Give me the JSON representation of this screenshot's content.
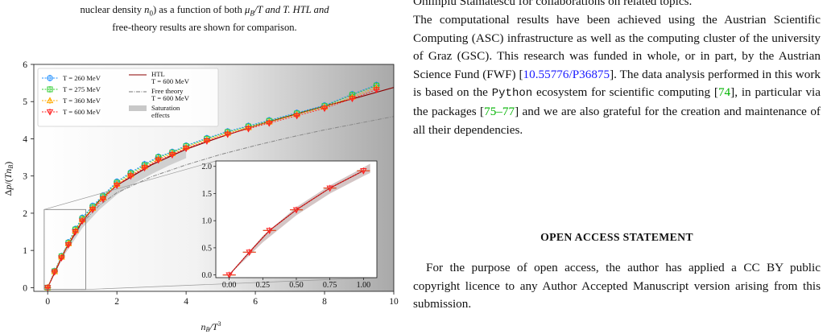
{
  "caption": {
    "line1_pre": "nuclear density ",
    "line1_sym": "n",
    "line1_sub": "0",
    "line1_mid": ") as a function of both ",
    "line1_mu": "μ",
    "line1_sub2": "B",
    "line1_post": "/T and T. HTL and",
    "line2": "free-theory results are shown for comparison."
  },
  "right_column": {
    "clipped_line": "Ohlinpiu Stamatescu for collaborations on related topics.",
    "para1_a": "The computational results have been achieved using the Austrian Scientific Computing (ASC) infrastructure as well as the computing cluster of the university of Graz (GSC). This research was funded in whole, or in part, by the Austrian Science Fund (FWF) [",
    "doi": "10.55776/P36875",
    "para1_b": "]. The data analysis performed in this work is based on the ",
    "python": "Python",
    "para1_c": " ecosystem for scientific computing [",
    "cite1": "74",
    "para1_d": "], in particular via the packages [",
    "cite2": "75–77",
    "para1_e": "] and we are also grateful for the creation and maintenance of all their dependencies.",
    "section_title": "OPEN ACCESS STATEMENT",
    "para2": "For the purpose of open access, the author has applied a CC BY public copyright licence to any Author Accepted Manuscript version arising from this submission."
  },
  "chart_data": {
    "type": "scatter",
    "xlabel": "n_B/T^3",
    "ylabel": "Δp/(T n_B)",
    "xlim": [
      -0.4,
      10
    ],
    "ylim": [
      -0.1,
      6
    ],
    "xticks": [
      0,
      2,
      4,
      6,
      8,
      10
    ],
    "yticks": [
      0,
      1,
      2,
      3,
      4,
      5,
      6
    ],
    "legend": {
      "placement": "top-left",
      "entries": [
        {
          "label": "T = 260 MeV",
          "color": "#1f8fff"
        },
        {
          "label": "T = 275 MeV",
          "color": "#33cc33"
        },
        {
          "label": "T = 360 MeV",
          "color": "#ffaa00"
        },
        {
          "label": "T = 600 MeV",
          "color": "#ff2222"
        }
      ],
      "secondary": [
        {
          "label": "HTL",
          "label2": "T = 600 MeV",
          "color": "#8b0000"
        },
        {
          "label": "Free theory",
          "label2": "T = 600 MeV",
          "color": "#777777"
        },
        {
          "label": "Saturation",
          "label2": "effects",
          "color": "#c8c8c8"
        }
      ]
    },
    "series": [
      {
        "name": "T = 260 MeV",
        "color": "#1f8fff",
        "x": [
          0,
          0.2,
          0.4,
          0.6,
          0.8,
          1.0,
          1.3,
          1.6,
          2.0,
          2.4,
          2.8,
          3.2,
          3.6,
          4.0,
          4.6,
          5.2,
          5.8,
          6.4,
          7.2,
          8.0,
          8.8,
          9.5
        ],
        "y": [
          0,
          0.45,
          0.85,
          1.22,
          1.58,
          1.88,
          2.2,
          2.48,
          2.85,
          3.1,
          3.32,
          3.52,
          3.65,
          3.82,
          4.02,
          4.2,
          4.35,
          4.5,
          4.7,
          4.9,
          5.2,
          5.45
        ]
      },
      {
        "name": "T = 275 MeV",
        "color": "#33cc33",
        "x": [
          0,
          0.2,
          0.4,
          0.6,
          0.8,
          1.0,
          1.3,
          1.6,
          2.0,
          2.4,
          2.8,
          3.2,
          3.6,
          4.0,
          4.6,
          5.2,
          5.8,
          6.4,
          7.2,
          8.0,
          8.8,
          9.5
        ],
        "y": [
          0,
          0.44,
          0.84,
          1.2,
          1.56,
          1.85,
          2.17,
          2.45,
          2.82,
          3.07,
          3.29,
          3.5,
          3.63,
          3.8,
          4.0,
          4.18,
          4.33,
          4.48,
          4.68,
          4.88,
          5.18,
          5.43
        ]
      },
      {
        "name": "T = 360 MeV",
        "color": "#ffaa00",
        "x": [
          0,
          0.2,
          0.4,
          0.6,
          0.8,
          1.0,
          1.3,
          1.6,
          2.0,
          2.4,
          2.8,
          3.2,
          3.6,
          4.0,
          4.6,
          5.2,
          5.8,
          6.4,
          7.2,
          8.0,
          8.8,
          9.5
        ],
        "y": [
          0,
          0.43,
          0.82,
          1.18,
          1.53,
          1.82,
          2.13,
          2.41,
          2.78,
          3.03,
          3.25,
          3.46,
          3.6,
          3.77,
          3.97,
          4.15,
          4.3,
          4.45,
          4.65,
          4.85,
          5.12,
          5.38
        ]
      },
      {
        "name": "T = 600 MeV",
        "color": "#ff2222",
        "x": [
          0,
          0.2,
          0.4,
          0.6,
          0.8,
          1.0,
          1.3,
          1.6,
          2.0,
          2.4,
          2.8,
          3.2,
          3.6,
          4.0,
          4.6,
          5.2,
          5.8,
          6.4,
          7.2,
          8.0,
          8.8,
          9.5
        ],
        "y": [
          0,
          0.42,
          0.8,
          1.15,
          1.5,
          1.79,
          2.1,
          2.38,
          2.75,
          3.0,
          3.22,
          3.43,
          3.57,
          3.74,
          3.94,
          4.12,
          4.27,
          4.42,
          4.62,
          4.82,
          5.08,
          5.32
        ]
      }
    ],
    "htl_curve": {
      "x": [
        0,
        0.5,
        1,
        1.5,
        2,
        3,
        4,
        5,
        6,
        7,
        8,
        9,
        10
      ],
      "y": [
        0,
        1.0,
        1.78,
        2.35,
        2.75,
        3.3,
        3.72,
        4.05,
        4.35,
        4.62,
        4.88,
        5.12,
        5.38
      ]
    },
    "free_curve": {
      "x": [
        0,
        0.5,
        1,
        1.5,
        2,
        3,
        4,
        5,
        6,
        7,
        8,
        9,
        10
      ],
      "y": [
        0,
        1.0,
        1.74,
        2.22,
        2.55,
        2.98,
        3.3,
        3.58,
        3.82,
        4.04,
        4.24,
        4.42,
        4.6
      ]
    },
    "saturation_band": {
      "x": [
        0,
        0.5,
        1,
        1.5,
        2,
        2.5,
        3,
        3.5,
        4
      ],
      "y_low": [
        0,
        0.9,
        1.6,
        2.1,
        2.5,
        2.8,
        3.05,
        3.28,
        3.48
      ],
      "y_high": [
        0,
        1.0,
        1.8,
        2.35,
        2.75,
        3.05,
        3.3,
        3.52,
        3.72
      ]
    },
    "inset": {
      "xlim": [
        -0.1,
        1.1
      ],
      "ylim": [
        -0.05,
        2.1
      ],
      "xticks": [
        0.0,
        0.25,
        0.5,
        0.75,
        1.0
      ],
      "xtick_labels": [
        "0.00",
        "0.25",
        "0.50",
        "0.75",
        "1.00"
      ],
      "yticks": [
        0.0,
        0.5,
        1.0,
        1.5,
        2.0
      ],
      "ytick_labels": [
        "0.0",
        "0.5",
        "1.0",
        "1.5",
        "2.0"
      ],
      "points": {
        "x": [
          0,
          0.15,
          0.3,
          0.5,
          0.75,
          1.0
        ],
        "y": [
          0,
          0.42,
          0.82,
          1.2,
          1.6,
          1.92
        ]
      },
      "band": {
        "x": [
          0,
          0.25,
          0.5,
          0.75,
          1.0,
          1.05
        ],
        "y_low": [
          0,
          0.6,
          1.1,
          1.5,
          1.82,
          1.88
        ],
        "y_high": [
          0,
          0.72,
          1.25,
          1.65,
          1.98,
          2.05
        ]
      }
    }
  }
}
